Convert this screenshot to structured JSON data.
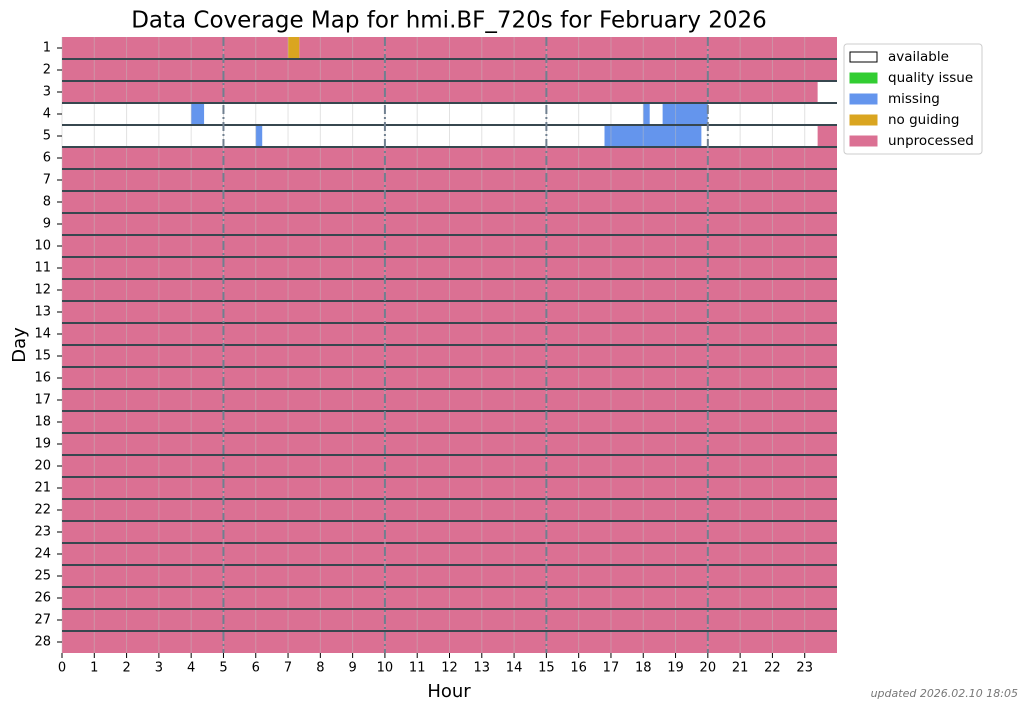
{
  "chart_data": {
    "type": "coverage",
    "title": "Data Coverage Map for hmi.BF_720s for February 2026",
    "x_label": "Hour",
    "y_label": "Day",
    "footnote": "updated 2026.02.10 18:05",
    "categories": [
      1,
      2,
      3,
      4,
      5,
      6,
      7,
      8,
      9,
      10,
      11,
      12,
      13,
      14,
      15,
      16,
      17,
      18,
      19,
      20,
      21,
      22,
      23,
      24,
      25,
      26,
      27,
      28
    ],
    "xlim": [
      0,
      24
    ],
    "xticks": [
      0,
      1,
      2,
      3,
      4,
      5,
      6,
      7,
      8,
      9,
      10,
      11,
      12,
      13,
      14,
      15,
      16,
      17,
      18,
      19,
      20,
      21,
      22,
      23
    ],
    "major_lines": [
      5,
      10,
      15,
      20
    ],
    "grid": true,
    "legend": "upper-right",
    "series": [
      {
        "name": "available",
        "color": "#ffffff",
        "intervals": [
          {
            "day": 3,
            "start": 23.4,
            "end": 24
          },
          {
            "day": 4,
            "start": 0,
            "end": 4.0
          },
          {
            "day": 4,
            "start": 4.4,
            "end": 18.0
          },
          {
            "day": 4,
            "start": 18.2,
            "end": 18.6
          },
          {
            "day": 4,
            "start": 20.0,
            "end": 24
          },
          {
            "day": 5,
            "start": 0,
            "end": 6.0
          },
          {
            "day": 5,
            "start": 6.2,
            "end": 16.8
          },
          {
            "day": 5,
            "start": 19.8,
            "end": 23.4
          }
        ]
      },
      {
        "name": "quality issue",
        "color": "#32cd32",
        "intervals": []
      },
      {
        "name": "missing",
        "color": "#6495ed",
        "intervals": [
          {
            "day": 4,
            "start": 4.0,
            "end": 4.4
          },
          {
            "day": 4,
            "start": 18.0,
            "end": 18.2
          },
          {
            "day": 4,
            "start": 18.6,
            "end": 20.0
          },
          {
            "day": 5,
            "start": 6.0,
            "end": 6.2
          },
          {
            "day": 5,
            "start": 16.8,
            "end": 19.8
          }
        ]
      },
      {
        "name": "no guiding",
        "color": "#daa520",
        "intervals": [
          {
            "day": 1,
            "start": 7.0,
            "end": 7.35
          }
        ]
      },
      {
        "name": "unprocessed",
        "color": "#db7093",
        "intervals": [
          {
            "day": 1,
            "start": 0,
            "end": 7.0
          },
          {
            "day": 1,
            "start": 7.35,
            "end": 24
          },
          {
            "day": 2,
            "start": 0,
            "end": 24
          },
          {
            "day": 3,
            "start": 0,
            "end": 23.4
          },
          {
            "day": 5,
            "start": 23.4,
            "end": 24
          },
          {
            "day": 6,
            "start": 0,
            "end": 24
          },
          {
            "day": 7,
            "start": 0,
            "end": 24
          },
          {
            "day": 8,
            "start": 0,
            "end": 24
          },
          {
            "day": 9,
            "start": 0,
            "end": 24
          },
          {
            "day": 10,
            "start": 0,
            "end": 24
          },
          {
            "day": 11,
            "start": 0,
            "end": 24
          },
          {
            "day": 12,
            "start": 0,
            "end": 24
          },
          {
            "day": 13,
            "start": 0,
            "end": 24
          },
          {
            "day": 14,
            "start": 0,
            "end": 24
          },
          {
            "day": 15,
            "start": 0,
            "end": 24
          },
          {
            "day": 16,
            "start": 0,
            "end": 24
          },
          {
            "day": 17,
            "start": 0,
            "end": 24
          },
          {
            "day": 18,
            "start": 0,
            "end": 24
          },
          {
            "day": 19,
            "start": 0,
            "end": 24
          },
          {
            "day": 20,
            "start": 0,
            "end": 24
          },
          {
            "day": 21,
            "start": 0,
            "end": 24
          },
          {
            "day": 22,
            "start": 0,
            "end": 24
          },
          {
            "day": 23,
            "start": 0,
            "end": 24
          },
          {
            "day": 24,
            "start": 0,
            "end": 24
          },
          {
            "day": 25,
            "start": 0,
            "end": 24
          },
          {
            "day": 26,
            "start": 0,
            "end": 24
          },
          {
            "day": 27,
            "start": 0,
            "end": 24
          },
          {
            "day": 28,
            "start": 0,
            "end": 24
          }
        ]
      }
    ]
  }
}
